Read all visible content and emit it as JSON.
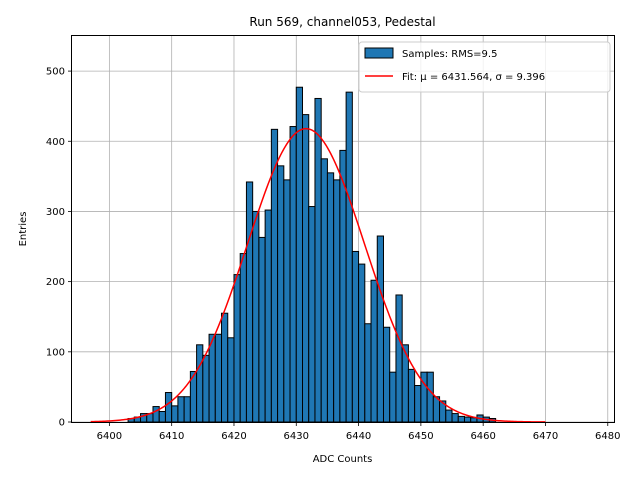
{
  "chart_data": {
    "type": "bar",
    "title": "Run 569, channel053, Pedestal",
    "xlabel": "ADC Counts",
    "ylabel": "Entries",
    "xlim": [
      6394,
      6481
    ],
    "ylim": [
      0,
      550
    ],
    "xticks": [
      6400,
      6410,
      6420,
      6430,
      6440,
      6450,
      6460,
      6470,
      6480
    ],
    "yticks": [
      0,
      100,
      200,
      300,
      400,
      500
    ],
    "grid": true,
    "legend_position": "top-right",
    "colors": {
      "bars": "#1f77b4",
      "bar_edge": "#000000",
      "fit": "#ff0000",
      "grid": "#b0b0b0"
    },
    "bin_start": 6403,
    "bin_width": 1,
    "bins": [
      [
        6403,
        5
      ],
      [
        6404,
        7
      ],
      [
        6405,
        12
      ],
      [
        6406,
        12
      ],
      [
        6407,
        22
      ],
      [
        6408,
        15
      ],
      [
        6409,
        42
      ],
      [
        6410,
        23
      ],
      [
        6411,
        36
      ],
      [
        6412,
        36
      ],
      [
        6413,
        72
      ],
      [
        6414,
        110
      ],
      [
        6415,
        95
      ],
      [
        6416,
        125
      ],
      [
        6417,
        125
      ],
      [
        6418,
        155
      ],
      [
        6419,
        120
      ],
      [
        6420,
        210
      ],
      [
        6421,
        240
      ],
      [
        6422,
        342
      ],
      [
        6423,
        300
      ],
      [
        6424,
        263
      ],
      [
        6425,
        302
      ],
      [
        6426,
        417
      ],
      [
        6427,
        365
      ],
      [
        6428,
        345
      ],
      [
        6429,
        421
      ],
      [
        6430,
        477
      ],
      [
        6431,
        438
      ],
      [
        6432,
        307
      ],
      [
        6433,
        461
      ],
      [
        6434,
        375
      ],
      [
        6435,
        355
      ],
      [
        6436,
        345
      ],
      [
        6437,
        387
      ],
      [
        6438,
        470
      ],
      [
        6439,
        243
      ],
      [
        6440,
        225
      ],
      [
        6441,
        140
      ],
      [
        6442,
        202
      ],
      [
        6443,
        265
      ],
      [
        6444,
        135
      ],
      [
        6445,
        71
      ],
      [
        6446,
        181
      ],
      [
        6447,
        110
      ],
      [
        6448,
        75
      ],
      [
        6449,
        52
      ],
      [
        6450,
        71
      ],
      [
        6451,
        71
      ],
      [
        6452,
        36
      ],
      [
        6453,
        30
      ],
      [
        6454,
        17
      ],
      [
        6455,
        12
      ],
      [
        6456,
        8
      ],
      [
        6457,
        7
      ],
      [
        6458,
        6
      ],
      [
        6459,
        10
      ],
      [
        6460,
        7
      ],
      [
        6461,
        5
      ]
    ],
    "series": [
      {
        "name": "Samples: RMS=9.5",
        "kind": "histogram"
      },
      {
        "name": "Fit: μ = 6431.564, σ = 9.396",
        "kind": "gaussian-line",
        "mu": 6431.564,
        "sigma": 9.396,
        "amplitude": 418,
        "x_range": [
          6397,
          6470
        ]
      }
    ]
  }
}
